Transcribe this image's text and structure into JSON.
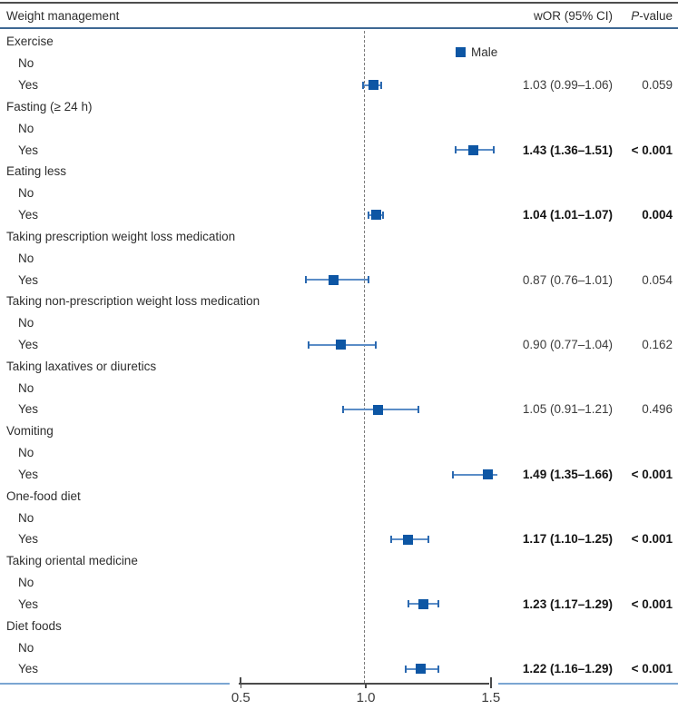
{
  "header": {
    "title": "Weight management",
    "wor_label": "wOR (95% CI)",
    "pvalue_italic": "P",
    "pvalue_rest": "-value"
  },
  "legend": {
    "label": "Male",
    "marker_color": "#0d56a4"
  },
  "colors": {
    "marker": "#0d56a4",
    "ci_line": "#5b8dc7",
    "ci_cap": "#2b69b0",
    "axis": "#4a4a4a",
    "reference_dashed_line": "#7a7a7a",
    "top_border": "#4d4d4d",
    "header_underline": "#3e6893",
    "bottom_border": "#7ba6d2"
  },
  "chart_data": {
    "type": "scatter",
    "variant": "forest-plot",
    "title": "Weight management",
    "columns": [
      "Weight management",
      "wOR (95% CI)",
      "P-value"
    ],
    "legend_entries": [
      "Male"
    ],
    "x_ticks": [
      0.5,
      1.0,
      1.5
    ],
    "x_tick_labels": [
      "0.5",
      "1.0",
      "1.5"
    ],
    "x_axis_range": [
      0.5,
      1.5
    ],
    "reference_line_x": 1.0,
    "grid": false,
    "legend_position": "top-inside-plot",
    "rows": [
      {
        "kind": "group",
        "label": "Exercise"
      },
      {
        "kind": "level",
        "label": "No"
      },
      {
        "kind": "data",
        "label": "Yes",
        "or": 1.03,
        "lo": 0.99,
        "hi": 1.06,
        "or_text": "1.03 (0.99–1.06)",
        "p_text": "0.059",
        "bold": false
      },
      {
        "kind": "group",
        "label": "Fasting (≥ 24 h)"
      },
      {
        "kind": "level",
        "label": "No"
      },
      {
        "kind": "data",
        "label": "Yes",
        "or": 1.43,
        "lo": 1.36,
        "hi": 1.51,
        "or_text": "1.43 (1.36–1.51)",
        "p_text": "< 0.001",
        "bold": true
      },
      {
        "kind": "group",
        "label": "Eating less"
      },
      {
        "kind": "level",
        "label": "No"
      },
      {
        "kind": "data",
        "label": "Yes",
        "or": 1.04,
        "lo": 1.01,
        "hi": 1.07,
        "or_text": "1.04 (1.01–1.07)",
        "p_text": "0.004",
        "bold": true
      },
      {
        "kind": "group",
        "label": "Taking prescription weight loss medication"
      },
      {
        "kind": "level",
        "label": "No"
      },
      {
        "kind": "data",
        "label": "Yes",
        "or": 0.87,
        "lo": 0.76,
        "hi": 1.01,
        "or_text": "0.87 (0.76–1.01)",
        "p_text": "0.054",
        "bold": false
      },
      {
        "kind": "group",
        "label": "Taking non-prescription weight loss medication"
      },
      {
        "kind": "level",
        "label": "No"
      },
      {
        "kind": "data",
        "label": "Yes",
        "or": 0.9,
        "lo": 0.77,
        "hi": 1.04,
        "or_text": "0.90 (0.77–1.04)",
        "p_text": "0.162",
        "bold": false
      },
      {
        "kind": "group",
        "label": "Taking laxatives or diuretics"
      },
      {
        "kind": "level",
        "label": "No"
      },
      {
        "kind": "data",
        "label": "Yes",
        "or": 1.05,
        "lo": 0.91,
        "hi": 1.21,
        "or_text": "1.05 (0.91–1.21)",
        "p_text": "0.496",
        "bold": false
      },
      {
        "kind": "group",
        "label": "Vomiting"
      },
      {
        "kind": "level",
        "label": "No"
      },
      {
        "kind": "data",
        "label": "Yes",
        "or": 1.49,
        "lo": 1.35,
        "hi": 1.66,
        "or_text": "1.49 (1.35–1.66)",
        "p_text": "< 0.001",
        "bold": true
      },
      {
        "kind": "group",
        "label": "One-food diet"
      },
      {
        "kind": "level",
        "label": "No"
      },
      {
        "kind": "data",
        "label": "Yes",
        "or": 1.17,
        "lo": 1.1,
        "hi": 1.25,
        "or_text": "1.17 (1.10–1.25)",
        "p_text": "< 0.001",
        "bold": true
      },
      {
        "kind": "group",
        "label": "Taking oriental medicine"
      },
      {
        "kind": "level",
        "label": "No"
      },
      {
        "kind": "data",
        "label": "Yes",
        "or": 1.23,
        "lo": 1.17,
        "hi": 1.29,
        "or_text": "1.23 (1.17–1.29)",
        "p_text": "< 0.001",
        "bold": true
      },
      {
        "kind": "group",
        "label": "Diet foods"
      },
      {
        "kind": "level",
        "label": "No"
      },
      {
        "kind": "data",
        "label": "Yes",
        "or": 1.22,
        "lo": 1.16,
        "hi": 1.29,
        "or_text": "1.22 (1.16–1.29)",
        "p_text": "< 0.001",
        "bold": true
      }
    ]
  }
}
